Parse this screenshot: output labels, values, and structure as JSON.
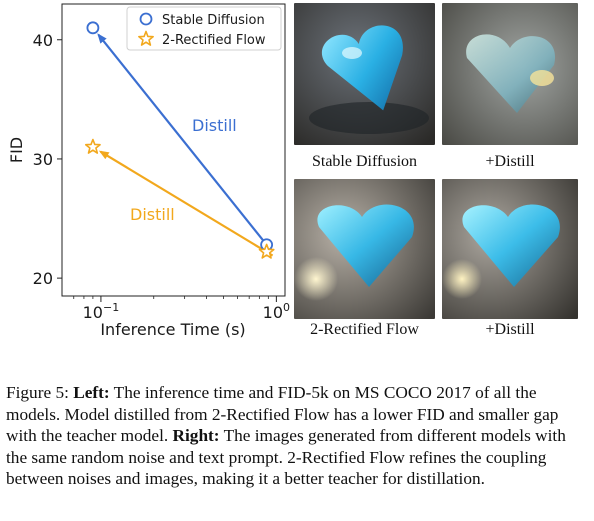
{
  "chart_data": {
    "type": "scatter",
    "xlabel": "Inference Time (s)",
    "ylabel": "FID",
    "xscale": "log",
    "xlim": [
      0.06,
      1.12
    ],
    "ylim": [
      18.5,
      43.0
    ],
    "yticks": [
      20,
      30,
      40
    ],
    "ytick_labels": [
      "20",
      "30",
      "40"
    ],
    "xticks": [
      0.1,
      1.0
    ],
    "xtick_labels": [
      "10",
      "10"
    ],
    "xtick_exponents": [
      "−1",
      "0"
    ],
    "legend_position": "top-right",
    "grid": false,
    "series": [
      {
        "name": "Stable Diffusion",
        "marker": "circle",
        "color": "#3b6fd1",
        "x": [
          0.09,
          0.88
        ],
        "y": [
          41.0,
          22.8
        ]
      },
      {
        "name": "2-Rectified Flow",
        "marker": "star",
        "color": "#f2a81d",
        "x": [
          0.09,
          0.88
        ],
        "y": [
          31.0,
          22.2
        ]
      }
    ],
    "annotations": [
      {
        "text": "Distill",
        "color": "#3b6fd1",
        "from": [
          0.88,
          22.8
        ],
        "to": [
          0.09,
          41.0
        ]
      },
      {
        "text": "Distill",
        "color": "#f2a81d",
        "from": [
          0.88,
          22.2
        ],
        "to": [
          0.09,
          31.0
        ]
      }
    ]
  },
  "images": [
    {
      "label": "Stable Diffusion",
      "style": "sd"
    },
    {
      "label": "+Distill",
      "style": "sd-distill"
    },
    {
      "label": "2-Rectified Flow",
      "style": "rf"
    },
    {
      "label": "+Distill",
      "style": "rf-distill"
    }
  ],
  "caption": {
    "figure_label": "Figure 5: ",
    "left_label": "Left:",
    "left_text": " The inference time and FID-5k on MS COCO 2017 of all the models. Model distilled from 2-Rectified Flow has a lower FID and smaller gap with the teacher model. ",
    "right_label": "Right:",
    "right_text": " The images generated from different models with the same random noise and text prompt. 2-Rectified Flow refines the coupling between noises and images, making it a better teacher for distillation."
  }
}
